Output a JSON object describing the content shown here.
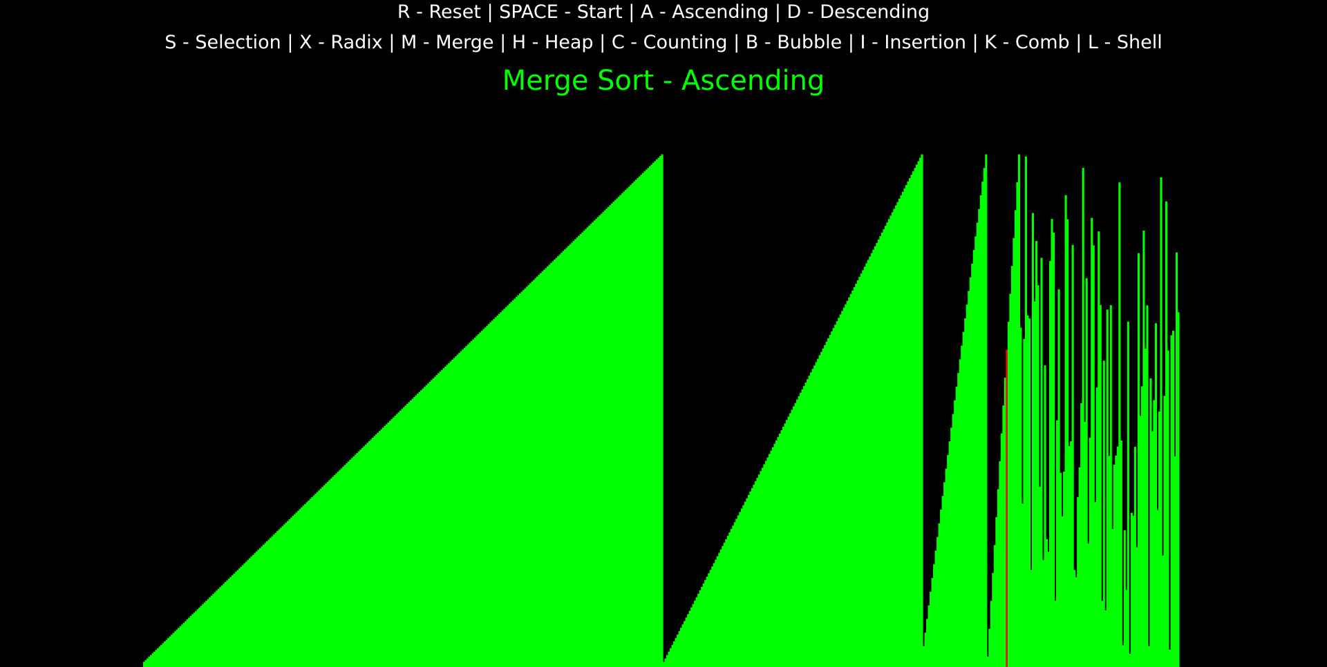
{
  "controls": {
    "line1": "R - Reset | SPACE - Start | A - Ascending | D - Descending",
    "line2": "S - Selection | X - Radix | M - Merge | H - Heap | C - Counting | B - Bubble | I - Insertion | K - Comb | L - Shell"
  },
  "status": {
    "title": "Merge Sort - Ascending"
  },
  "colors": {
    "background": "#000000",
    "text": "#ffffff",
    "bar": "#00ff00",
    "highlight_bar": "#ff0000"
  },
  "array": {
    "segments": [
      {
        "state": "sorted-run",
        "count": 300,
        "min": 0.01,
        "max": 0.99
      },
      {
        "state": "sorted-run",
        "count": 150,
        "min": 0.01,
        "max": 0.99
      },
      {
        "state": "sorted-run",
        "count": 37,
        "min": 0.04,
        "max": 0.99
      },
      {
        "state": "sorted-run",
        "count": 19,
        "min": 0.02,
        "max": 0.99
      },
      {
        "state": "unsorted",
        "count": 92,
        "min": 0.02,
        "max": 0.99
      }
    ],
    "highlight_index": 498
  }
}
